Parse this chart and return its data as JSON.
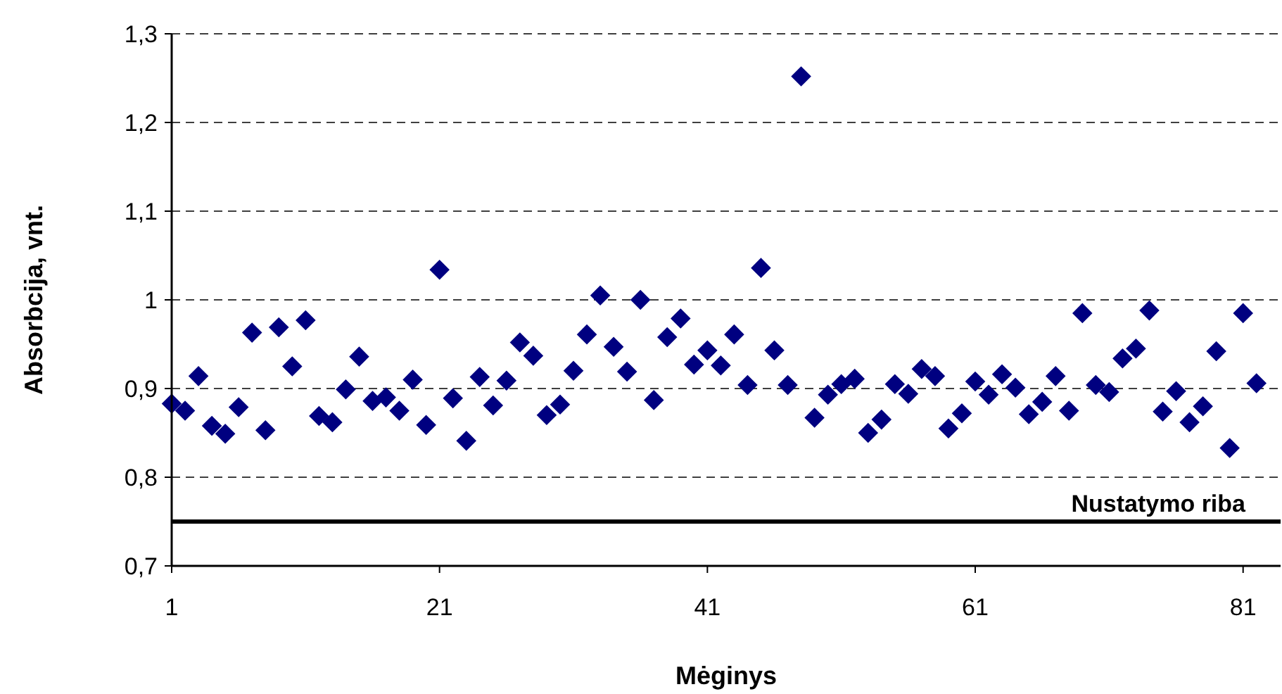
{
  "chart_data": {
    "type": "scatter",
    "xlabel": "Mėginys",
    "ylabel": "Absorbcija, vnt.",
    "x": [
      1,
      2,
      3,
      4,
      5,
      6,
      7,
      8,
      9,
      10,
      11,
      12,
      13,
      14,
      15,
      16,
      17,
      18,
      19,
      20,
      21,
      22,
      23,
      24,
      25,
      26,
      27,
      28,
      29,
      30,
      31,
      32,
      33,
      34,
      35,
      36,
      37,
      38,
      39,
      40,
      41,
      42,
      43,
      44,
      45,
      46,
      47,
      48,
      49,
      50,
      51,
      52,
      53,
      54,
      55,
      56,
      57,
      58,
      59,
      60,
      61,
      62,
      63,
      64,
      65,
      66,
      67,
      68,
      69,
      70,
      71,
      72,
      73,
      74,
      75,
      76,
      77,
      78,
      79,
      80,
      81,
      82
    ],
    "series": [
      {
        "color": "#000080",
        "values": [
          0.883,
          0.875,
          0.914,
          0.858,
          0.849,
          0.879,
          0.963,
          0.853,
          0.969,
          0.925,
          0.977,
          0.869,
          0.862,
          0.899,
          0.936,
          0.886,
          0.89,
          0.875,
          0.91,
          0.859,
          1.034,
          0.889,
          0.841,
          0.913,
          0.881,
          0.909,
          0.952,
          0.937,
          0.87,
          0.882,
          0.92,
          0.961,
          1.005,
          0.947,
          0.919,
          1.0,
          0.887,
          0.958,
          0.979,
          0.927,
          0.943,
          0.926,
          0.961,
          0.904,
          1.036,
          0.943,
          0.904,
          1.252,
          0.867,
          0.893,
          0.905,
          0.911,
          0.85,
          0.865,
          0.905,
          0.894,
          0.922,
          0.914,
          0.855,
          0.872,
          0.908,
          0.893,
          0.916,
          0.901,
          0.871,
          0.885,
          0.914,
          0.875,
          0.985,
          0.904,
          0.896,
          0.934,
          0.945,
          0.988,
          0.874,
          0.897,
          0.862,
          0.88,
          0.942,
          0.833,
          0.985,
          0.906
        ]
      }
    ],
    "marker": "diamond",
    "xlim": [
      1,
      83.8
    ],
    "xticks": [
      1,
      21,
      41,
      61,
      81
    ],
    "ylim": [
      0.7,
      1.3
    ],
    "yticks": [
      {
        "value": 0.7,
        "label": "0,7"
      },
      {
        "value": 0.8,
        "label": "0,8"
      },
      {
        "value": 0.9,
        "label": "0,9"
      },
      {
        "value": 1,
        "label": "1"
      },
      {
        "value": 1.1,
        "label": "1,1"
      },
      {
        "value": 1.2,
        "label": "1,2"
      },
      {
        "value": 1.3,
        "label": "1,3"
      }
    ],
    "grid": "y",
    "ref_lines": [
      {
        "axis": "y",
        "value": 0.75,
        "label": "Nustatymo riba",
        "color": "#000000",
        "line_style": "solid"
      }
    ]
  }
}
